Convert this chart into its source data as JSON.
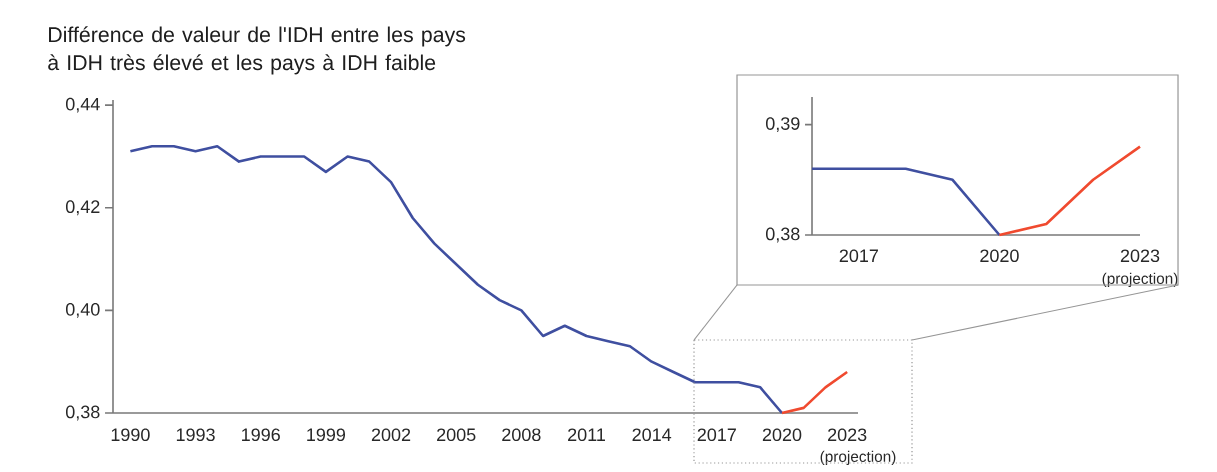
{
  "chart_data": [
    {
      "type": "line",
      "title": "Différence de valeur de l'IDH entre les pays à IDH très élevé et les pays à IDH faible",
      "series": [
        {
          "color": "#3f4fa0",
          "x": [
            1990,
            1991,
            1992,
            1993,
            1994,
            1995,
            1996,
            1997,
            1998,
            1999,
            2000,
            2001,
            2002,
            2003,
            2004,
            2005,
            2006,
            2007,
            2008,
            2009,
            2010,
            2011,
            2012,
            2013,
            2014,
            2015,
            2016,
            2017,
            2018,
            2019,
            2020
          ],
          "values": [
            0.431,
            0.432,
            0.432,
            0.431,
            0.432,
            0.429,
            0.43,
            0.43,
            0.43,
            0.427,
            0.43,
            0.429,
            0.425,
            0.418,
            0.413,
            0.409,
            0.405,
            0.402,
            0.4,
            0.395,
            0.397,
            0.395,
            0.394,
            0.393,
            0.39,
            0.388,
            0.386,
            0.386,
            0.386,
            0.385,
            0.38
          ]
        },
        {
          "color": "#f04a2f",
          "x": [
            2020,
            2021,
            2022,
            2023
          ],
          "values": [
            0.38,
            0.381,
            0.385,
            0.388
          ]
        }
      ],
      "xlim": [
        1989.2,
        2023.5
      ],
      "ylim": [
        0.38,
        0.441
      ],
      "xticks": [
        1990,
        1993,
        1996,
        1999,
        2002,
        2005,
        2008,
        2011,
        2014,
        2017,
        2020,
        2023
      ],
      "yticks": [
        {
          "value": 0.38,
          "label": "0,38"
        },
        {
          "value": 0.4,
          "label": "0,40"
        },
        {
          "value": 0.42,
          "label": "0,42"
        },
        {
          "value": 0.44,
          "label": "0,44"
        }
      ],
      "annotations": [
        "(projection)"
      ],
      "marker": "none",
      "line_style": "solid"
    },
    {
      "type": "line",
      "series": [
        {
          "color": "#3f4fa0",
          "x": [
            2016,
            2017,
            2018,
            2019,
            2020
          ],
          "values": [
            0.386,
            0.386,
            0.386,
            0.385,
            0.38
          ]
        },
        {
          "color": "#f04a2f",
          "x": [
            2020,
            2021,
            2022,
            2023
          ],
          "values": [
            0.38,
            0.381,
            0.385,
            0.388
          ]
        }
      ],
      "xlim": [
        2016,
        2023
      ],
      "ylim": [
        0.38,
        0.3925
      ],
      "xticks": [
        2017,
        2020,
        2023
      ],
      "yticks": [
        {
          "value": 0.38,
          "label": "0,38"
        },
        {
          "value": 0.39,
          "label": "0,39"
        }
      ],
      "annotations": [
        "(projection)"
      ],
      "marker": "none",
      "line_style": "solid"
    }
  ]
}
